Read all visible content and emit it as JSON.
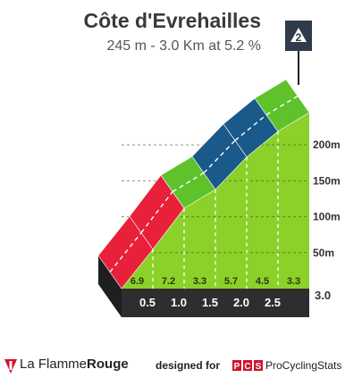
{
  "header": {
    "title": "Côte d'Evrehailles",
    "subtitle": "245 m - 3.0 Km at 5.2 %",
    "category": "2"
  },
  "footer": {
    "brand_regular": "La Flamme",
    "brand_bold": "Rouge",
    "designed_for": "designed for",
    "pcs_logo": "PCS",
    "pcs_name": "ProCyclingStats"
  },
  "chart_data": {
    "type": "area",
    "title": "Côte d'Evrehailles",
    "subtitle": "245 m - 3.0 Km at 5.2 %",
    "x_unit": "km",
    "y_unit": "m",
    "xlim": [
      0,
      3.0
    ],
    "ylim": [
      0,
      245
    ],
    "distance_ticks": [
      "0.5",
      "1.0",
      "1.5",
      "2.0",
      "2.5",
      "3.0"
    ],
    "distance_tick_values": [
      0.5,
      1.0,
      1.5,
      2.0,
      2.5,
      3.0
    ],
    "altitude_ticks": [
      "50m",
      "100m",
      "150m",
      "200m"
    ],
    "altitude_tick_values": [
      50,
      100,
      150,
      200
    ],
    "segments": [
      {
        "from_km": 0.0,
        "to_km": 0.5,
        "gradient": 6.9,
        "gradient_label": "6.9",
        "color": "#e8203a"
      },
      {
        "from_km": 0.5,
        "to_km": 1.0,
        "gradient": 7.2,
        "gradient_label": "7.2",
        "color": "#e8203a"
      },
      {
        "from_km": 1.0,
        "to_km": 1.5,
        "gradient": 3.3,
        "gradient_label": "3.3",
        "color": "#5fc22b"
      },
      {
        "from_km": 1.5,
        "to_km": 2.0,
        "gradient": 5.7,
        "gradient_label": "5.7",
        "color": "#1a5a8a"
      },
      {
        "from_km": 2.0,
        "to_km": 2.5,
        "gradient": 4.5,
        "gradient_label": "4.5",
        "color": "#1a5a8a"
      },
      {
        "from_km": 2.5,
        "to_km": 3.0,
        "gradient": 3.3,
        "gradient_label": "3.3",
        "color": "#5fc22b"
      }
    ],
    "profile_fill": "#8bd12a",
    "side_fill": "#b0a69a",
    "base_fill": "#2e2e2e",
    "grid": true
  }
}
